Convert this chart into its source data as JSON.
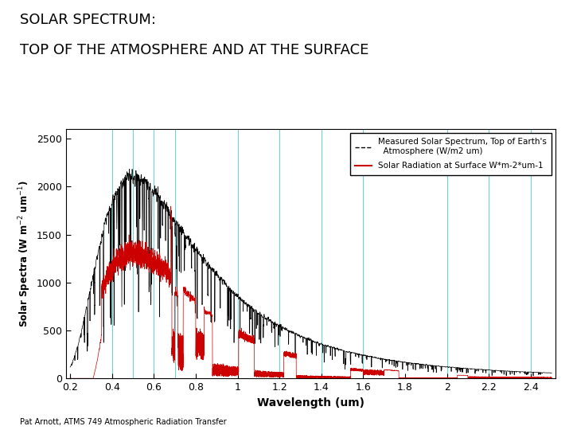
{
  "title_line1": "SOLAR SPECTRUM:",
  "title_line2": "TOP OF THE ATMOSPHERE AND AT THE SURFACE",
  "xlabel": "Wavelength (um)",
  "ylabel": "Solar Spectra (W m⁻² um⁻¹)",
  "legend_toa": "Measured Solar Spectrum, Top of Earth's\n  Atmosphere (W/m2 um)",
  "legend_surface": "Solar Radiation at Surface W*m-2*um-1",
  "footnote": "Pat Arnott, ATMS 749 Atmospheric Radiation Transfer",
  "xlim": [
    0.18,
    2.52
  ],
  "ylim": [
    0,
    2600
  ],
  "yticks": [
    0,
    500,
    1000,
    1500,
    2000,
    2500
  ],
  "xticks": [
    0.2,
    0.4,
    0.6,
    0.8,
    1.0,
    1.2,
    1.4,
    1.6,
    1.8,
    2.0,
    2.2,
    2.4
  ],
  "vlines": [
    0.4,
    0.5,
    0.6,
    0.7,
    1.0,
    1.2,
    1.4,
    1.6,
    2.0,
    2.2,
    2.4
  ],
  "vline_color": "#55CCCC",
  "toa_color": "#000000",
  "surface_color": "#CC0000",
  "bg_color": "#FFFFFF",
  "fig_width": 7.2,
  "fig_height": 5.4
}
